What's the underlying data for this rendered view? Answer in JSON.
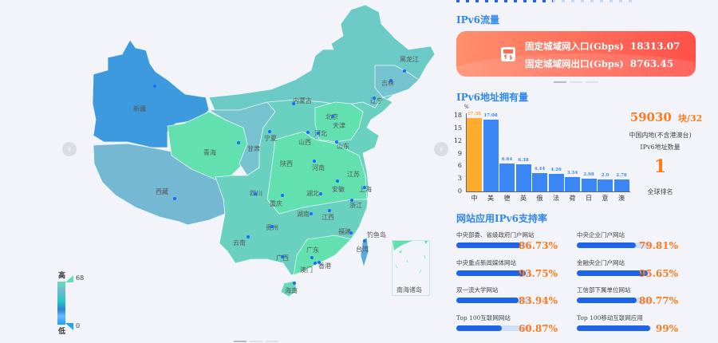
{
  "map": {
    "provinces": [
      {
        "name": "新疆",
        "color": "#3d9ade"
      },
      {
        "name": "西藏",
        "color": "#74b8d4"
      },
      {
        "name": "青海",
        "color": "#62e0b0"
      },
      {
        "name": "甘肃",
        "color": "#74c3cf"
      },
      {
        "name": "内蒙古",
        "color": "#6ccac6"
      },
      {
        "name": "黑龙江",
        "color": "#6ccac6"
      },
      {
        "name": "吉林",
        "color": "#74c3cf"
      },
      {
        "name": "辽宁",
        "color": "#62e0b0"
      },
      {
        "name": "北京",
        "color": "#62e0b0"
      },
      {
        "name": "天津",
        "color": "#62e0b0"
      },
      {
        "name": "河北",
        "color": "#62e0b0"
      },
      {
        "name": "山西",
        "color": "#6ad6bb"
      },
      {
        "name": "山东",
        "color": "#6ccac6"
      },
      {
        "name": "宁夏",
        "color": "#6ad6bb"
      },
      {
        "name": "陕西",
        "color": "#62e0b0"
      },
      {
        "name": "河南",
        "color": "#62e0b0"
      },
      {
        "name": "江苏",
        "color": "#62e0b0"
      },
      {
        "name": "安徽",
        "color": "#62e0b0"
      },
      {
        "name": "上海",
        "color": "#62e0b0"
      },
      {
        "name": "四川",
        "color": "#6ccac6"
      },
      {
        "name": "湖北",
        "color": "#62e0b0"
      },
      {
        "name": "重庆",
        "color": "#62e0b0"
      },
      {
        "name": "浙江",
        "color": "#62e0b0"
      },
      {
        "name": "湖南",
        "color": "#6ad6bb"
      },
      {
        "name": "江西",
        "color": "#6ad6bb"
      },
      {
        "name": "贵州",
        "color": "#74c3cf"
      },
      {
        "name": "福建",
        "color": "#6ccac6"
      },
      {
        "name": "云南",
        "color": "#6ad6bb"
      },
      {
        "name": "广西",
        "color": "#74c3cf"
      },
      {
        "name": "广东",
        "color": "#62e0b0"
      },
      {
        "name": "香港",
        "color": "#62e0b0"
      },
      {
        "name": "澳门",
        "color": "#62e0b0"
      },
      {
        "name": "海南",
        "color": "#6ad6bb"
      },
      {
        "name": "台湾",
        "color": "#5aa8dc"
      },
      {
        "name": "钓鱼岛",
        "color": "#62e0b0"
      }
    ],
    "inset_label": "南海诸岛",
    "legend": {
      "high_label": "高",
      "low_label": "低",
      "max": "68",
      "min": "0"
    },
    "prev_icon": "chevron-left-icon",
    "next_icon": "chevron-right-icon"
  },
  "traffic": {
    "title": "IPv6流量",
    "icon": "router-icon",
    "inbound_label": "固定城域网入口(Gbps)",
    "inbound_value": "18313.07",
    "outbound_label": "固定城域网出口(Gbps)",
    "outbound_value": "8763.45"
  },
  "address": {
    "title": "IPv6地址拥有量",
    "total_value": "59030",
    "total_unit": "块/32",
    "desc_line1": "中国内地(不含港澳台)",
    "desc_line2": "IPv6地址数量",
    "rank": "1",
    "rank_label": "全球排名"
  },
  "chart_data": {
    "type": "bar",
    "ylabel": "%",
    "categories": [
      "中",
      "美",
      "德",
      "英",
      "俄",
      "法",
      "荷",
      "日",
      "意",
      "澳"
    ],
    "values": [
      17.38,
      17.08,
      6.64,
      6.38,
      4.44,
      4.26,
      3.34,
      2.98,
      2.9,
      2.78
    ],
    "value_labels": [
      "17.38",
      "17.08",
      "6.64",
      "6.38",
      "4.44",
      "4.26",
      "3.34",
      "2.98",
      "2.9",
      "2.78"
    ],
    "yticks": [
      "0",
      "3",
      "6",
      "9",
      "12",
      "15",
      "18"
    ],
    "ylim": [
      0,
      18
    ],
    "highlight_color": "#ffab2e",
    "bar_color": "#3a86f5"
  },
  "support": {
    "title": "网站应用IPv6支持率",
    "items": [
      {
        "label": "中央部委、省级政府门户网站",
        "value": 86.73,
        "text": "86.73%"
      },
      {
        "label": "中央企业门户网站",
        "value": 79.81,
        "text": "79.81%"
      },
      {
        "label": "中央重点新闻媒体网站",
        "value": 93.75,
        "text": "93.75%"
      },
      {
        "label": "金融央企门户网站",
        "value": 95.65,
        "text": "95.65%"
      },
      {
        "label": "双一流大学网站",
        "value": 83.94,
        "text": "83.94%"
      },
      {
        "label": "工信部下属单位网站",
        "value": 80.77,
        "text": "80.77%"
      },
      {
        "label": "Top 100互联网网站",
        "value": 60.87,
        "text": "60.87%"
      },
      {
        "label": "Top 100移动互联网应用",
        "value": 99,
        "text": "99%"
      }
    ]
  }
}
